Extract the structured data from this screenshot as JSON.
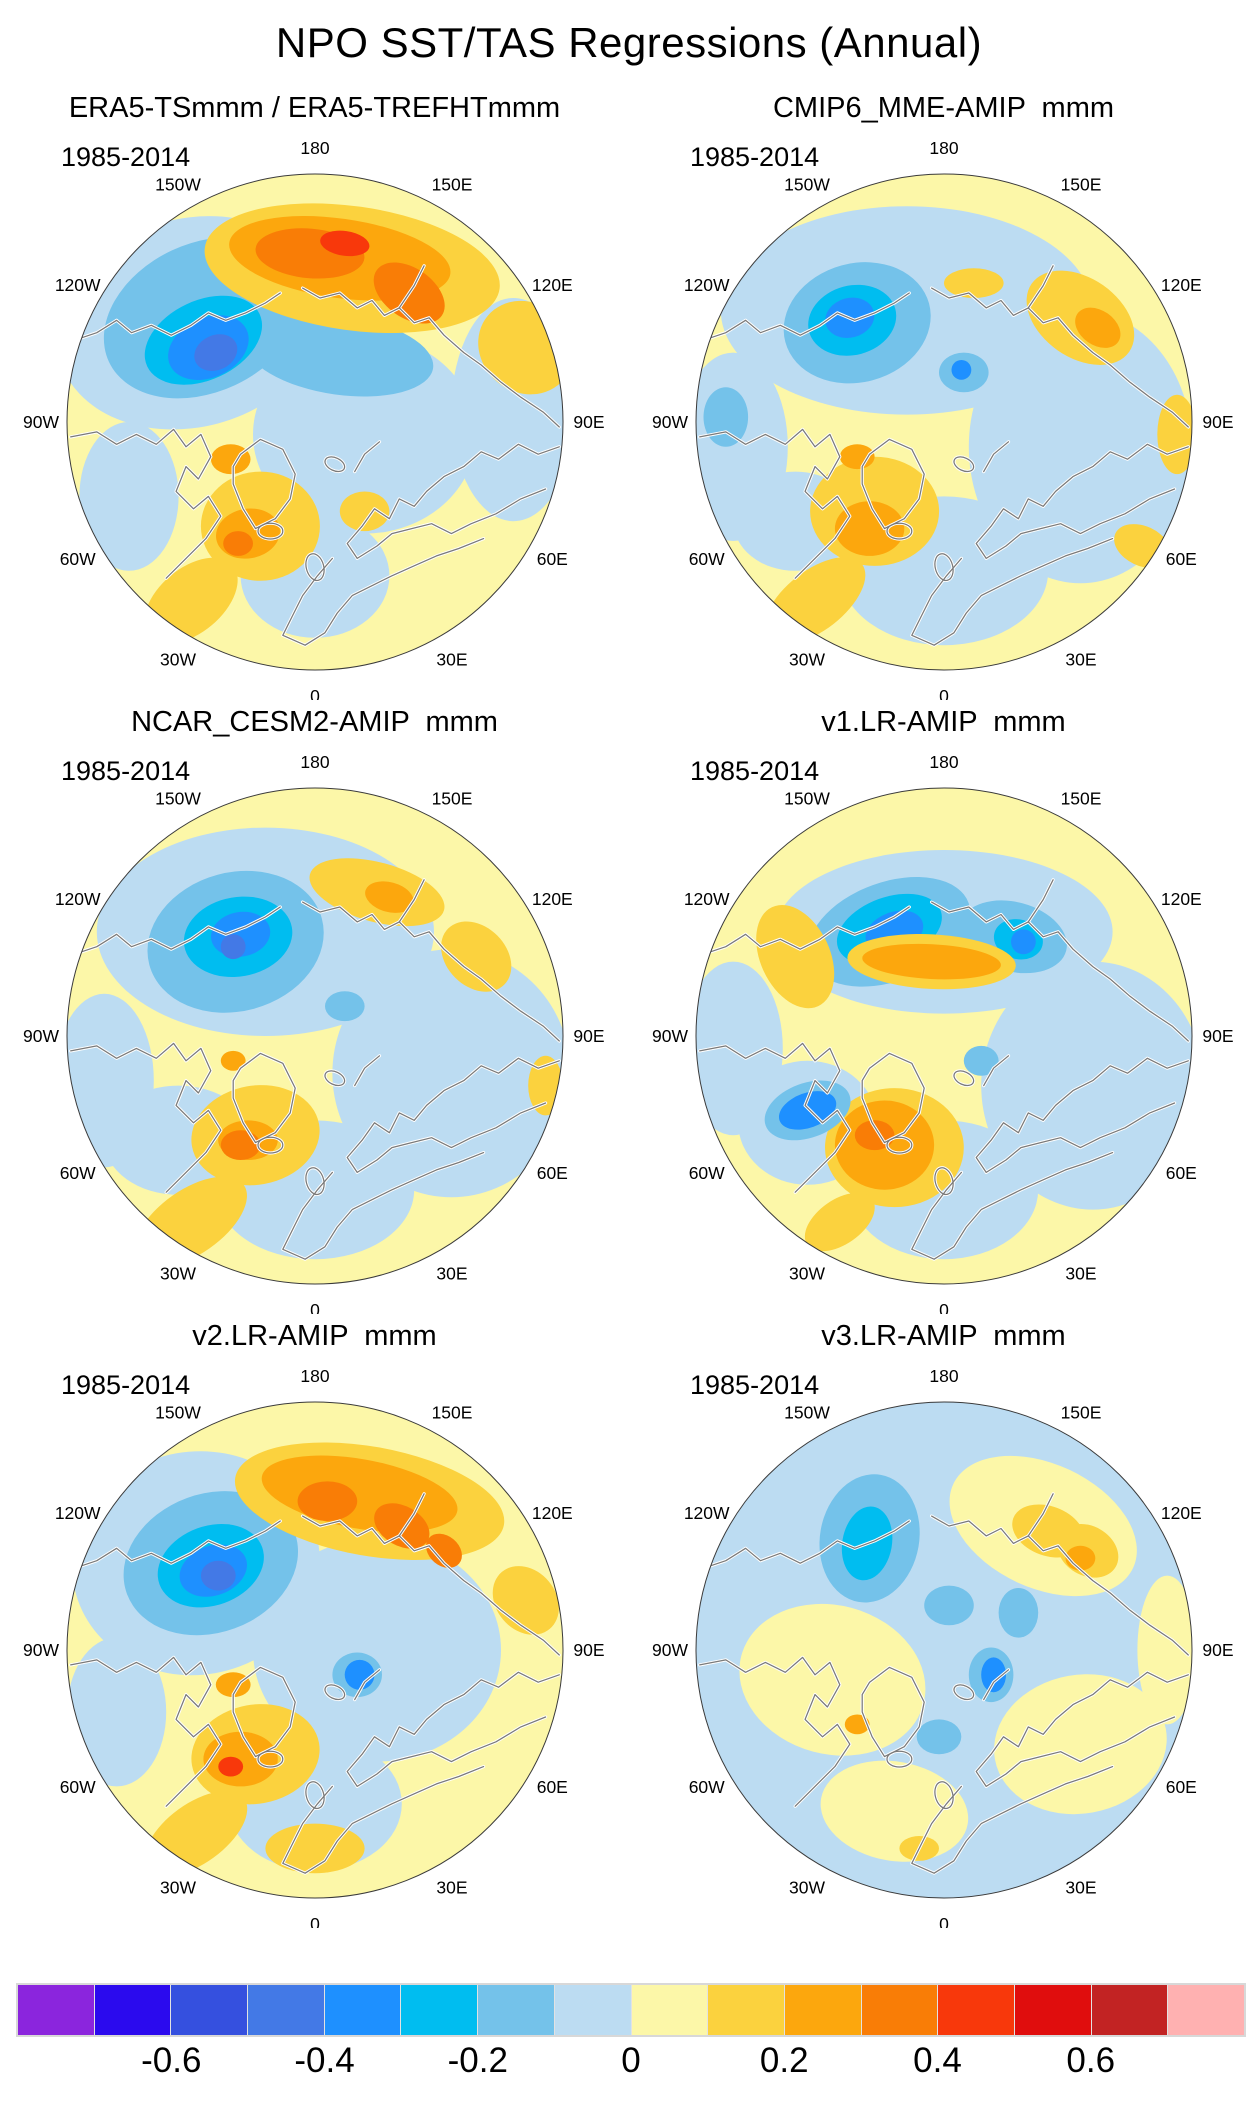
{
  "chart_data": {
    "type": "heatmap",
    "title": "NPO SST/TAS Regressions (Annual)",
    "panel_layout": "2x3",
    "projection": "North Polar Stereographic",
    "levels": [
      -0.8,
      -0.7,
      -0.6,
      -0.5,
      -0.4,
      -0.3,
      -0.2,
      -0.1,
      0,
      0.1,
      0.2,
      0.3,
      0.4,
      0.5,
      0.6,
      0.7,
      0.8
    ],
    "palette": [
      "#8B25DD",
      "#2B0AEE",
      "#3550DF",
      "#4379E6",
      "#1E90FF",
      "#00BDF0",
      "#74C2EA",
      "#BCDCF2",
      "#FCF7A8",
      "#FBD23E",
      "#FCA70D",
      "#F97D06",
      "#F8380B",
      "#E00D0D",
      "#C22323",
      "#FFB1B1"
    ],
    "colorbar_ticks": [
      "-0.6",
      "-0.4",
      "-0.2",
      "0",
      "0.2",
      "0.4",
      "0.6"
    ],
    "tick_boundary_indices": [
      2,
      4,
      6,
      8,
      10,
      12,
      14
    ],
    "lon_labels": [
      {
        "label": "180",
        "az": 0
      },
      {
        "label": "150E",
        "az": 30
      },
      {
        "label": "120E",
        "az": 60
      },
      {
        "label": "90E",
        "az": 90
      },
      {
        "label": "60E",
        "az": 120
      },
      {
        "label": "30E",
        "az": 150
      },
      {
        "label": "0",
        "az": 180
      },
      {
        "label": "30W",
        "az": 210
      },
      {
        "label": "60W",
        "az": 240
      },
      {
        "label": "90W",
        "az": 270
      },
      {
        "label": "120W",
        "az": 300
      },
      {
        "label": "150W",
        "az": 330
      }
    ],
    "panels": [
      {
        "title": "ERA5-TSmmm / ERA5-TREFHTmmm",
        "period": "1985-2014",
        "features": "Strong negative center over Gulf of Alaska / NE Pacific; strong positive band over Bering Sea, Kamchatka and Sea of Okhotsk; positive anomalies over Hudson Bay and Labrador Sea; weak positives over Eurasia",
        "base": 8,
        "blobs": [
          [
            -0.5,
            -0.4,
            0.55,
            0.42,
            -15,
            7
          ],
          [
            0.2,
            0.05,
            0.45,
            0.4,
            0,
            7
          ],
          [
            0.8,
            -0.05,
            0.25,
            0.45,
            0,
            7
          ],
          [
            0.0,
            0.62,
            0.3,
            0.25,
            0,
            7
          ],
          [
            -0.75,
            0.3,
            0.2,
            0.3,
            0,
            7
          ],
          [
            -0.45,
            -0.42,
            0.42,
            0.3,
            -25,
            6
          ],
          [
            0.1,
            -0.27,
            0.38,
            0.16,
            8,
            6
          ],
          [
            -0.45,
            -0.33,
            0.25,
            0.16,
            -25,
            5
          ],
          [
            -0.43,
            -0.3,
            0.17,
            0.12,
            -25,
            4
          ],
          [
            -0.4,
            -0.28,
            0.09,
            0.07,
            -25,
            3
          ],
          [
            0.15,
            -0.62,
            0.6,
            0.25,
            8,
            9
          ],
          [
            0.85,
            -0.3,
            0.2,
            0.18,
            40,
            9
          ],
          [
            0.1,
            -0.66,
            0.45,
            0.16,
            8,
            10
          ],
          [
            -0.02,
            -0.68,
            0.22,
            0.1,
            5,
            11
          ],
          [
            0.38,
            -0.52,
            0.16,
            0.1,
            35,
            11
          ],
          [
            0.12,
            -0.72,
            0.1,
            0.05,
            8,
            12
          ],
          [
            -0.22,
            0.42,
            0.24,
            0.22,
            0,
            9
          ],
          [
            -0.27,
            0.45,
            0.13,
            0.1,
            -10,
            10
          ],
          [
            -0.31,
            0.49,
            0.06,
            0.05,
            0,
            11
          ],
          [
            -0.34,
            0.15,
            0.08,
            0.06,
            0,
            10
          ],
          [
            0.2,
            0.36,
            0.1,
            0.08,
            0,
            9
          ],
          [
            -0.5,
            0.72,
            0.22,
            0.13,
            -40,
            9
          ]
        ]
      },
      {
        "title": "CMIP6_MME-AMIP  mmm",
        "period": "1985-2014",
        "features": "Moderate negative center over NE Pacific; broad weak negatives across Arctic; positive patches over east Siberia, Hudson Bay and Labrador Sea",
        "base": 8,
        "blobs": [
          [
            -0.15,
            -0.45,
            0.75,
            0.42,
            0,
            7
          ],
          [
            0.55,
            0.1,
            0.45,
            0.55,
            0,
            7
          ],
          [
            0.0,
            0.6,
            0.42,
            0.3,
            0,
            7
          ],
          [
            -0.85,
            0.1,
            0.22,
            0.38,
            0,
            7
          ],
          [
            -0.6,
            0.4,
            0.25,
            0.2,
            0,
            7
          ],
          [
            -0.35,
            -0.4,
            0.3,
            0.24,
            -15,
            6
          ],
          [
            -0.37,
            -0.41,
            0.18,
            0.14,
            -15,
            5
          ],
          [
            -0.38,
            -0.42,
            0.1,
            0.08,
            -15,
            4
          ],
          [
            0.08,
            -0.2,
            0.1,
            0.08,
            0,
            6
          ],
          [
            0.07,
            -0.21,
            0.04,
            0.04,
            0,
            4
          ],
          [
            0.55,
            -0.42,
            0.24,
            0.16,
            35,
            9
          ],
          [
            0.62,
            -0.38,
            0.1,
            0.07,
            35,
            10
          ],
          [
            0.12,
            -0.56,
            0.12,
            0.06,
            0,
            9
          ],
          [
            -0.28,
            0.36,
            0.26,
            0.22,
            0,
            9
          ],
          [
            -0.3,
            0.43,
            0.14,
            0.11,
            0,
            10
          ],
          [
            -0.35,
            0.14,
            0.07,
            0.05,
            0,
            10
          ],
          [
            -0.52,
            0.72,
            0.24,
            0.12,
            -38,
            9
          ],
          [
            0.94,
            0.05,
            0.08,
            0.16,
            0,
            9
          ],
          [
            0.8,
            0.5,
            0.12,
            0.08,
            25,
            9
          ],
          [
            -0.88,
            -0.02,
            0.09,
            0.12,
            0,
            6
          ]
        ]
      },
      {
        "title": "NCAR_CESM2-AMIP  mmm",
        "period": "1985-2014",
        "features": "Moderate negative center over NE Pacific; weak negatives over Arctic; gold positives over east Siberia, Labrador Sea and N Atlantic rim",
        "base": 8,
        "blobs": [
          [
            -0.2,
            -0.42,
            0.68,
            0.42,
            0,
            7
          ],
          [
            0.55,
            0.15,
            0.48,
            0.5,
            0,
            7
          ],
          [
            0.0,
            0.62,
            0.4,
            0.28,
            0,
            7
          ],
          [
            -0.85,
            0.18,
            0.2,
            0.35,
            0,
            7
          ],
          [
            -0.55,
            0.42,
            0.3,
            0.22,
            0,
            7
          ],
          [
            -0.32,
            -0.38,
            0.36,
            0.28,
            -15,
            6
          ],
          [
            -0.31,
            -0.4,
            0.22,
            0.16,
            -10,
            5
          ],
          [
            -0.3,
            -0.41,
            0.12,
            0.09,
            -10,
            4
          ],
          [
            -0.33,
            -0.36,
            0.05,
            0.05,
            0,
            3
          ],
          [
            0.25,
            -0.58,
            0.28,
            0.12,
            15,
            9
          ],
          [
            0.65,
            -0.32,
            0.16,
            0.12,
            45,
            9
          ],
          [
            0.3,
            -0.56,
            0.1,
            0.06,
            15,
            10
          ],
          [
            -0.24,
            0.4,
            0.26,
            0.2,
            -10,
            9
          ],
          [
            -0.27,
            0.42,
            0.12,
            0.08,
            0,
            10
          ],
          [
            -0.3,
            0.44,
            0.08,
            0.06,
            0,
            11
          ],
          [
            -0.33,
            0.1,
            0.05,
            0.04,
            0,
            10
          ],
          [
            0.12,
            -0.12,
            0.08,
            0.06,
            0,
            6
          ],
          [
            -0.5,
            0.75,
            0.26,
            0.13,
            -35,
            9
          ],
          [
            0.93,
            0.2,
            0.07,
            0.12,
            0,
            9
          ]
        ]
      },
      {
        "title": "v1.LR-AMIP  mmm",
        "period": "1985-2014",
        "features": "Elongated negative center north of Alaska / Chukchi Sea with secondary negative near East Siberian Sea; gold positives along Alaska coast, NW Canada and Labrador Sea",
        "base": 8,
        "blobs": [
          [
            0.0,
            -0.42,
            0.68,
            0.33,
            0,
            7
          ],
          [
            0.6,
            0.2,
            0.45,
            0.5,
            0,
            7
          ],
          [
            0.0,
            0.62,
            0.38,
            0.28,
            0,
            7
          ],
          [
            -0.85,
            0.05,
            0.2,
            0.35,
            0,
            7
          ],
          [
            -0.55,
            0.35,
            0.28,
            0.25,
            0,
            7
          ],
          [
            -0.22,
            -0.42,
            0.34,
            0.2,
            -20,
            6
          ],
          [
            0.28,
            -0.4,
            0.22,
            0.14,
            15,
            6
          ],
          [
            -0.22,
            -0.43,
            0.22,
            0.13,
            -20,
            5
          ],
          [
            0.3,
            -0.39,
            0.1,
            0.08,
            15,
            5
          ],
          [
            -0.2,
            -0.42,
            0.12,
            0.08,
            -20,
            4
          ],
          [
            0.32,
            -0.38,
            0.05,
            0.05,
            0,
            4
          ],
          [
            -0.6,
            -0.32,
            0.14,
            0.22,
            -25,
            9
          ],
          [
            -0.05,
            -0.3,
            0.34,
            0.11,
            3,
            9
          ],
          [
            -0.05,
            -0.3,
            0.28,
            0.07,
            3,
            10
          ],
          [
            -0.2,
            0.45,
            0.28,
            0.24,
            0,
            9
          ],
          [
            -0.24,
            0.44,
            0.2,
            0.18,
            0,
            10
          ],
          [
            -0.28,
            0.4,
            0.08,
            0.06,
            0,
            11
          ],
          [
            -0.55,
            0.3,
            0.18,
            0.11,
            -20,
            6
          ],
          [
            -0.55,
            0.3,
            0.12,
            0.07,
            -20,
            4
          ],
          [
            0.15,
            0.1,
            0.07,
            0.06,
            0,
            6
          ],
          [
            -0.42,
            0.75,
            0.16,
            0.09,
            -35,
            9
          ]
        ]
      },
      {
        "title": "v2.LR-AMIP  mmm",
        "period": "1985-2014",
        "features": "Strong negative center over Gulf of Alaska; strong positive band over Bering Sea and east Siberia; positives over Labrador Sea and N Atlantic rim",
        "base": 8,
        "blobs": [
          [
            -0.48,
            -0.35,
            0.5,
            0.45,
            -10,
            7
          ],
          [
            0.25,
            0.0,
            0.5,
            0.45,
            0,
            7
          ],
          [
            0.0,
            0.62,
            0.35,
            0.27,
            0,
            7
          ],
          [
            -0.8,
            0.25,
            0.2,
            0.3,
            0,
            7
          ],
          [
            -0.42,
            -0.35,
            0.36,
            0.28,
            -20,
            6
          ],
          [
            -0.42,
            -0.34,
            0.22,
            0.16,
            -20,
            5
          ],
          [
            -0.41,
            -0.32,
            0.14,
            0.1,
            -20,
            4
          ],
          [
            -0.39,
            -0.3,
            0.07,
            0.06,
            0,
            3
          ],
          [
            0.22,
            -0.6,
            0.55,
            0.22,
            10,
            9
          ],
          [
            0.18,
            -0.63,
            0.4,
            0.14,
            10,
            10
          ],
          [
            0.05,
            -0.6,
            0.12,
            0.08,
            0,
            11
          ],
          [
            0.35,
            -0.5,
            0.12,
            0.08,
            30,
            11
          ],
          [
            0.52,
            -0.4,
            0.08,
            0.06,
            40,
            11
          ],
          [
            0.85,
            -0.2,
            0.15,
            0.12,
            50,
            9
          ],
          [
            -0.24,
            0.42,
            0.26,
            0.2,
            -10,
            9
          ],
          [
            -0.3,
            0.44,
            0.15,
            0.11,
            0,
            10
          ],
          [
            -0.34,
            0.47,
            0.05,
            0.04,
            0,
            12
          ],
          [
            -0.33,
            0.14,
            0.07,
            0.05,
            0,
            10
          ],
          [
            0.17,
            0.1,
            0.1,
            0.09,
            0,
            6
          ],
          [
            0.18,
            0.1,
            0.06,
            0.06,
            0,
            4
          ],
          [
            -0.48,
            0.74,
            0.24,
            0.12,
            -36,
            9
          ],
          [
            0.0,
            0.8,
            0.2,
            0.1,
            0,
            9
          ]
        ]
      },
      {
        "title": "v3.LR-AMIP  mmm",
        "period": "1985-2014",
        "features": "Weak pattern: moderate negative over NE Pacific, broad weak negatives elsewhere; gold positives over east Siberia; mostly pale blue ocean and pale yellow land",
        "base": 7,
        "blobs": [
          [
            0.4,
            -0.5,
            0.4,
            0.25,
            25,
            8
          ],
          [
            -0.45,
            0.12,
            0.38,
            0.3,
            15,
            8
          ],
          [
            0.55,
            0.38,
            0.35,
            0.28,
            -10,
            8
          ],
          [
            0.9,
            0.0,
            0.12,
            0.3,
            0,
            8
          ],
          [
            -0.2,
            0.65,
            0.3,
            0.2,
            10,
            8
          ],
          [
            -0.3,
            -0.45,
            0.2,
            0.26,
            10,
            6
          ],
          [
            -0.31,
            -0.43,
            0.1,
            0.15,
            10,
            5
          ],
          [
            0.42,
            -0.48,
            0.15,
            0.1,
            20,
            9
          ],
          [
            0.58,
            -0.4,
            0.13,
            0.1,
            30,
            9
          ],
          [
            0.55,
            -0.37,
            0.06,
            0.05,
            0,
            10
          ],
          [
            0.19,
            0.1,
            0.09,
            0.11,
            0,
            6
          ],
          [
            0.2,
            0.1,
            0.05,
            0.07,
            0,
            4
          ],
          [
            0.02,
            -0.18,
            0.1,
            0.08,
            0,
            6
          ],
          [
            -0.02,
            0.35,
            0.09,
            0.07,
            0,
            6
          ],
          [
            0.3,
            -0.15,
            0.08,
            0.1,
            0,
            6
          ],
          [
            -0.35,
            0.3,
            0.05,
            0.04,
            0,
            10
          ],
          [
            -0.1,
            0.8,
            0.08,
            0.05,
            0,
            9
          ]
        ]
      }
    ]
  }
}
